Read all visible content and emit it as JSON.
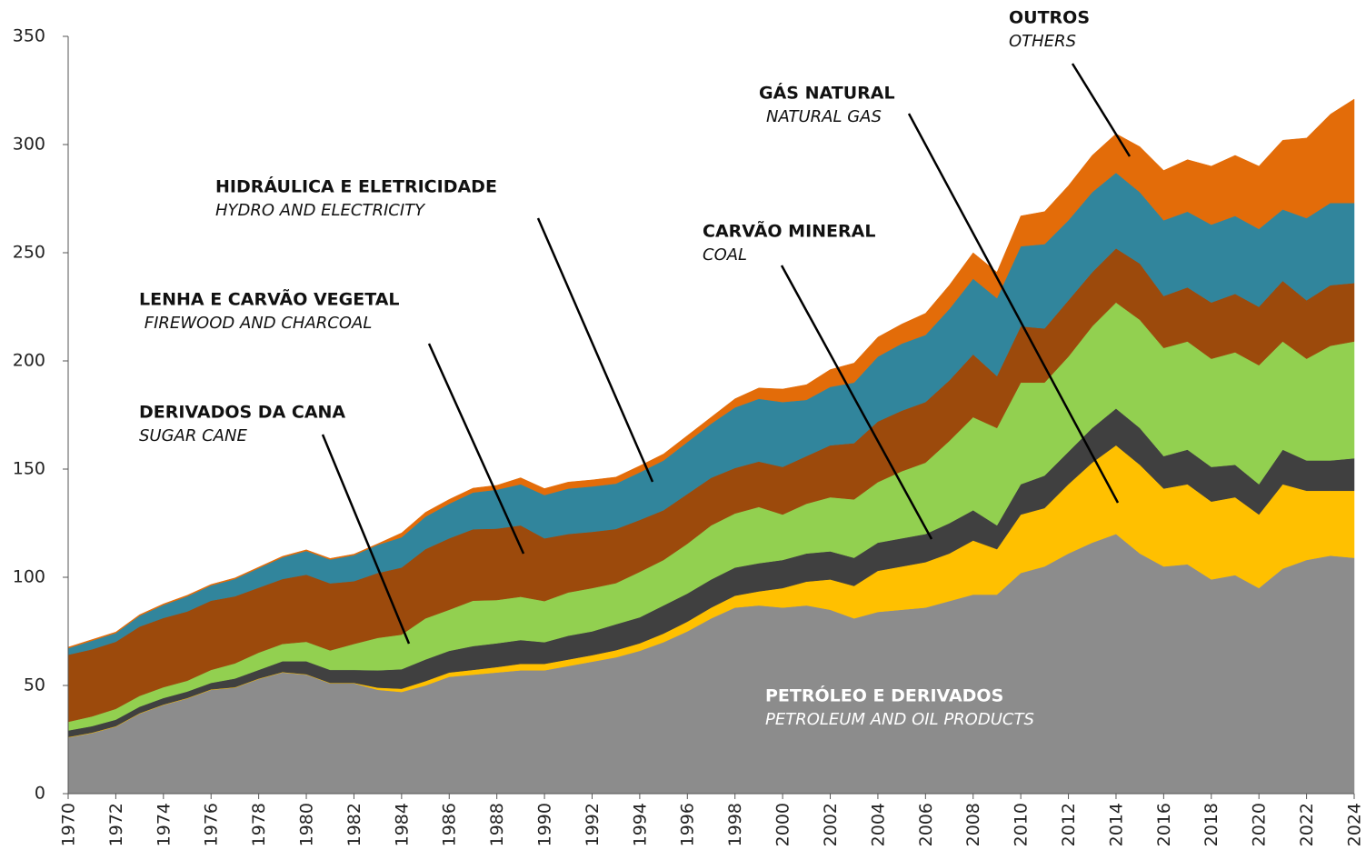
{
  "chart_data": {
    "type": "stacked_area",
    "x": [
      1970,
      1971,
      1972,
      1973,
      1974,
      1975,
      1976,
      1977,
      1978,
      1979,
      1980,
      1981,
      1982,
      1983,
      1984,
      1985,
      1986,
      1987,
      1988,
      1989,
      1990,
      1991,
      1992,
      1993,
      1994,
      1995,
      1996,
      1997,
      1998,
      1999,
      2000,
      2001,
      2002,
      2003,
      2004,
      2005,
      2006,
      2007,
      2008,
      2009,
      2010,
      2011,
      2012,
      2013,
      2014,
      2015,
      2016,
      2017,
      2018,
      2019,
      2020,
      2021,
      2022,
      2023,
      2024
    ],
    "xlim": [
      1970,
      2024
    ],
    "xticks": [
      1970,
      1972,
      1974,
      1976,
      1978,
      1980,
      1982,
      1984,
      1986,
      1988,
      1990,
      1992,
      1994,
      1996,
      1998,
      2000,
      2002,
      2004,
      2006,
      2008,
      2010,
      2012,
      2014,
      2016,
      2018,
      2020,
      2022,
      2024
    ],
    "ylim": [
      0,
      350
    ],
    "yticks": [
      0,
      50,
      100,
      150,
      200,
      250,
      300,
      350
    ],
    "series": [
      {
        "name": "PETRÓLEO E DERIVADOS",
        "subname": "PETROLEUM AND OIL PRODUCTS",
        "color": "#8c8c8c",
        "values": [
          26,
          28,
          31,
          37,
          41,
          44,
          48,
          49,
          53,
          56,
          55,
          51,
          51,
          48,
          47,
          50,
          54,
          55,
          56,
          57,
          57,
          59,
          61,
          63,
          66,
          70,
          75,
          81,
          86,
          87,
          86,
          87,
          85,
          81,
          84,
          85,
          86,
          89,
          92,
          92,
          102,
          105,
          111,
          116,
          120,
          111,
          105,
          106,
          99,
          101,
          95,
          104,
          108,
          110,
          109
        ]
      },
      {
        "name": "GÁS NATURAL",
        "subname": "NATURAL GAS",
        "color": "#ffc000",
        "values": [
          0.2,
          0.2,
          0.2,
          0.2,
          0.2,
          0.2,
          0.2,
          0.2,
          0.2,
          0.2,
          0.2,
          0.2,
          0.2,
          1,
          1.5,
          2,
          2,
          2.2,
          2.5,
          3,
          3,
          3,
          3,
          3.3,
          3.5,
          4,
          4.5,
          5,
          5.5,
          6.5,
          9,
          11,
          14,
          15,
          19,
          20,
          21,
          22,
          25,
          21,
          27,
          27,
          32,
          37,
          41,
          41,
          36,
          37,
          36,
          36,
          34,
          39,
          32,
          30,
          31
        ]
      },
      {
        "name": "CARVÃO MINERAL",
        "subname": "COAL",
        "color": "#404040",
        "values": [
          3,
          3,
          3,
          3,
          3,
          3,
          3,
          4,
          4,
          5,
          6,
          6,
          6,
          8,
          9,
          10,
          10,
          11,
          11,
          11,
          10,
          11,
          11,
          12,
          12,
          13,
          13,
          13,
          13,
          13,
          13,
          13,
          13,
          13,
          13,
          13,
          13,
          14,
          14,
          11,
          14,
          15,
          15,
          16,
          17,
          17,
          15,
          16,
          16,
          15,
          14,
          16,
          14,
          14,
          15
        ]
      },
      {
        "name": "DERIVADOS DA CANA",
        "subname": "SUGAR CANE",
        "color": "#92d050",
        "values": [
          4,
          4.5,
          5,
          5,
          5,
          5,
          6,
          7,
          8,
          8,
          9,
          9,
          12,
          15,
          16,
          19,
          19,
          21,
          20,
          20,
          19,
          20,
          20,
          19,
          21,
          21,
          23,
          25,
          25,
          26,
          21,
          23,
          25,
          27,
          28,
          31,
          33,
          38,
          43,
          45,
          47,
          43,
          44,
          47,
          49,
          50,
          50,
          50,
          50,
          52,
          55,
          50,
          47,
          53,
          54
        ]
      },
      {
        "name": "LENHA E CARVÃO VEGETAL",
        "subname": " FIREWOOD AND CHARCOAL",
        "color": "#9c4a0c",
        "values": [
          31,
          31,
          31,
          32,
          32,
          32,
          32,
          31,
          30,
          30,
          31,
          31,
          29,
          30,
          31,
          32,
          33,
          33,
          33,
          33,
          29,
          27,
          26,
          25,
          24,
          23,
          23,
          22,
          21,
          21,
          22,
          22,
          24,
          26,
          28,
          28,
          28,
          28,
          29,
          24,
          26,
          25,
          26,
          25,
          25,
          26,
          24,
          25,
          26,
          27,
          27,
          28,
          27,
          28,
          27
        ]
      },
      {
        "name": "HIDRÁULICA E ELETRICIDADE",
        "subname": "HYDRO AND ELECTRICITY",
        "color": "#31859c",
        "values": [
          3,
          4,
          4,
          5,
          6,
          7,
          7,
          8,
          9,
          10,
          11,
          11,
          12,
          13,
          14,
          15,
          16,
          17,
          18,
          19,
          20,
          21,
          21,
          21,
          22,
          23,
          24,
          25,
          28,
          29,
          30,
          26,
          27,
          28,
          30,
          31,
          31,
          33,
          35,
          36,
          37,
          39,
          37,
          37,
          35,
          33,
          35,
          35,
          36,
          36,
          36,
          33,
          38,
          38,
          37
        ]
      },
      {
        "name": "OUTROS",
        "subname": "OTHERS",
        "color": "#e36c09",
        "values": [
          0.5,
          0.5,
          0.5,
          0.5,
          0.5,
          0.5,
          0.5,
          0.5,
          0.5,
          0.5,
          0.5,
          0.5,
          0.5,
          0.5,
          2,
          2,
          2,
          2,
          2,
          3,
          3,
          3,
          3,
          3,
          3,
          3,
          3,
          3,
          4,
          5,
          6,
          7,
          8,
          9,
          9,
          9,
          10,
          11,
          12,
          12,
          14,
          15,
          16,
          17,
          18,
          21,
          23,
          24,
          27,
          28,
          29,
          32,
          37,
          41,
          48
        ]
      }
    ]
  }
}
